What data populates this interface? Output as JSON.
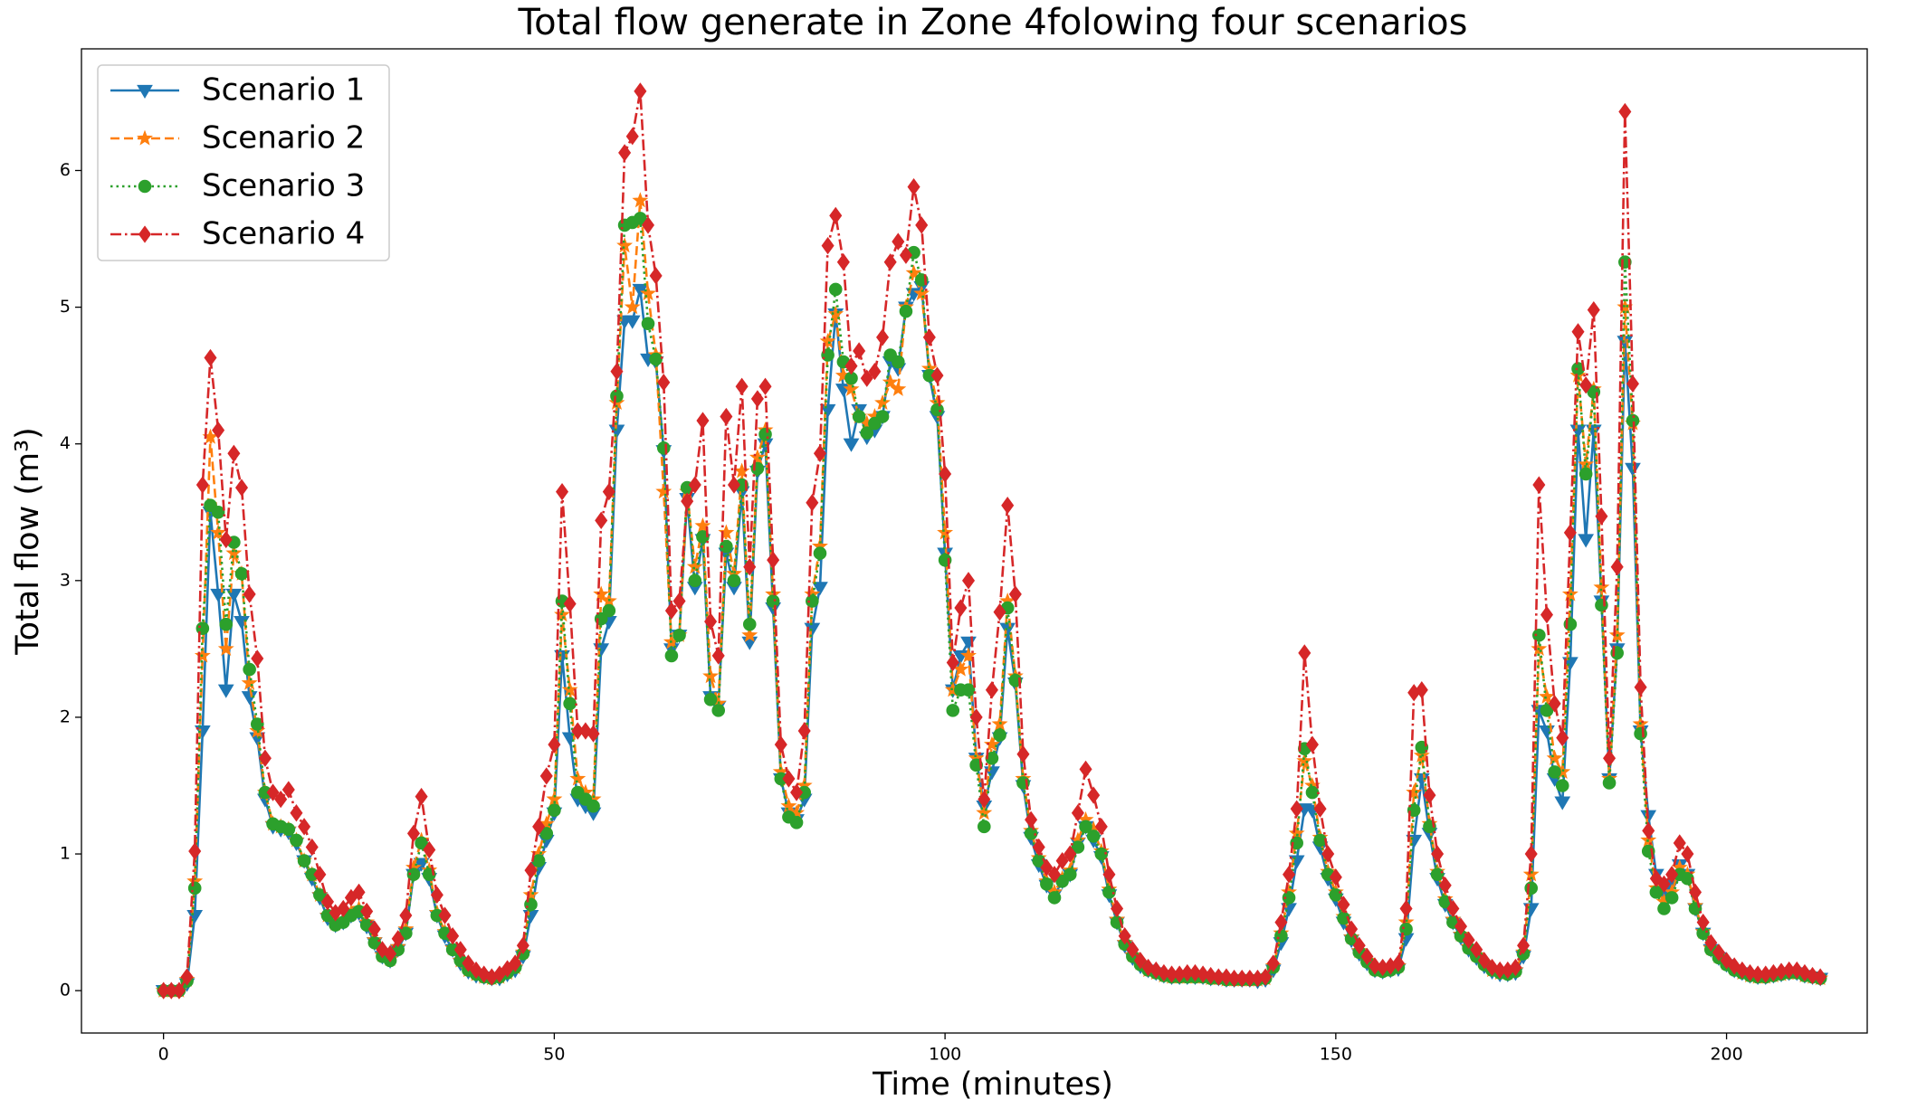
{
  "chart_data": {
    "type": "line",
    "title": "Total flow generate in Zone 4folowing four scenarios",
    "xlabel": "Time (minutes)",
    "ylabel": "Total flow (m³)",
    "legend": "upper left",
    "grid": false,
    "xlim": [
      -10.5,
      218
    ],
    "ylim": [
      -0.31,
      6.89
    ],
    "xticks": [
      0,
      50,
      100,
      150,
      200
    ],
    "yticks": [
      0,
      1,
      2,
      3,
      4,
      5,
      6
    ],
    "x": [
      0,
      1,
      2,
      3,
      4,
      5,
      6,
      7,
      8,
      9,
      10,
      11,
      12,
      13,
      14,
      15,
      16,
      17,
      18,
      19,
      20,
      21,
      22,
      23,
      24,
      25,
      26,
      27,
      28,
      29,
      30,
      31,
      32,
      33,
      34,
      35,
      36,
      37,
      38,
      39,
      40,
      41,
      42,
      43,
      44,
      45,
      46,
      47,
      48,
      49,
      50,
      51,
      52,
      53,
      54,
      55,
      56,
      57,
      58,
      59,
      60,
      61,
      62,
      63,
      64,
      65,
      66,
      67,
      68,
      69,
      70,
      71,
      72,
      73,
      74,
      75,
      76,
      77,
      78,
      79,
      80,
      81,
      82,
      83,
      84,
      85,
      86,
      87,
      88,
      89,
      90,
      91,
      92,
      93,
      94,
      95,
      96,
      97,
      98,
      99,
      100,
      101,
      102,
      103,
      104,
      105,
      106,
      107,
      108,
      109,
      110,
      111,
      112,
      113,
      114,
      115,
      116,
      117,
      118,
      119,
      120,
      121,
      122,
      123,
      124,
      125,
      126,
      127,
      128,
      129,
      130,
      131,
      132,
      133,
      134,
      135,
      136,
      137,
      138,
      139,
      140,
      141,
      142,
      143,
      144,
      145,
      146,
      147,
      148,
      149,
      150,
      151,
      152,
      153,
      154,
      155,
      156,
      157,
      158,
      159,
      160,
      161,
      162,
      163,
      164,
      165,
      166,
      167,
      168,
      169,
      170,
      171,
      172,
      173,
      174,
      175,
      176,
      177,
      178,
      179,
      180,
      181,
      182,
      183,
      184,
      185,
      186,
      187,
      188,
      189,
      190,
      191,
      192,
      193,
      194,
      195,
      196,
      197,
      198,
      199,
      200,
      201,
      202,
      203,
      204,
      205,
      206,
      207,
      208,
      209,
      210,
      211,
      212
    ],
    "series": [
      {
        "name": "Scenario 1",
        "color": "#1f77b4",
        "linestyle": "solid",
        "marker": "triangle-down",
        "values": [
          0,
          0,
          0,
          0.05,
          0.55,
          1.9,
          3.5,
          2.9,
          2.2,
          2.9,
          2.7,
          2.15,
          1.85,
          1.4,
          1.2,
          1.18,
          1.16,
          1.08,
          0.95,
          0.82,
          0.68,
          0.53,
          0.48,
          0.5,
          0.55,
          0.57,
          0.47,
          0.35,
          0.25,
          0.22,
          0.3,
          0.42,
          0.85,
          0.93,
          0.82,
          0.55,
          0.4,
          0.3,
          0.2,
          0.14,
          0.11,
          0.1,
          0.09,
          0.09,
          0.12,
          0.15,
          0.25,
          0.55,
          0.9,
          1.1,
          1.3,
          2.45,
          1.85,
          1.4,
          1.35,
          1.3,
          2.5,
          2.7,
          4.1,
          4.9,
          4.9,
          5.13,
          4.62,
          4.6,
          3.95,
          2.5,
          2.6,
          3.6,
          2.95,
          3.3,
          2.15,
          2.08,
          3.2,
          2.95,
          3.65,
          2.55,
          3.8,
          4.0,
          2.8,
          1.55,
          1.3,
          1.25,
          1.4,
          2.65,
          2.95,
          4.25,
          4.95,
          4.4,
          4.0,
          4.25,
          4.05,
          4.1,
          4.2,
          4.6,
          4.55,
          5.0,
          5.1,
          5.15,
          4.5,
          4.2,
          3.2,
          2.2,
          2.45,
          2.55,
          1.7,
          1.35,
          1.6,
          1.85,
          2.65,
          2.25,
          1.5,
          1.12,
          0.92,
          0.77,
          0.7,
          0.8,
          0.85,
          1.08,
          1.2,
          1.1,
          0.98,
          0.7,
          0.5,
          0.33,
          0.24,
          0.18,
          0.15,
          0.13,
          0.11,
          0.1,
          0.1,
          0.1,
          0.1,
          0.1,
          0.09,
          0.09,
          0.08,
          0.08,
          0.08,
          0.08,
          0.07,
          0.08,
          0.15,
          0.35,
          0.6,
          0.95,
          1.33,
          1.32,
          1.05,
          0.82,
          0.67,
          0.5,
          0.37,
          0.27,
          0.2,
          0.15,
          0.14,
          0.15,
          0.16,
          0.38,
          1.1,
          1.55,
          1.15,
          0.82,
          0.63,
          0.5,
          0.39,
          0.3,
          0.24,
          0.18,
          0.14,
          0.12,
          0.12,
          0.13,
          0.25,
          0.6,
          2.05,
          1.9,
          1.55,
          1.38,
          2.4,
          4.1,
          3.3,
          4.1,
          2.85,
          1.55,
          2.5,
          4.75,
          3.82,
          1.9,
          1.28,
          0.85,
          0.72,
          0.78,
          0.92,
          0.85,
          0.6,
          0.42,
          0.3,
          0.24,
          0.19,
          0.15,
          0.13,
          0.11,
          0.1,
          0.1,
          0.11,
          0.12,
          0.13,
          0.13,
          0.11,
          0.1,
          0.09
        ]
      },
      {
        "name": "Scenario 2",
        "color": "#ff7f0e",
        "linestyle": "dashed",
        "marker": "star",
        "values": [
          0,
          0,
          0,
          0.08,
          0.8,
          2.45,
          4.05,
          3.35,
          2.5,
          3.2,
          3.05,
          2.25,
          1.9,
          1.45,
          1.22,
          1.2,
          1.18,
          1.1,
          0.95,
          0.85,
          0.7,
          0.55,
          0.49,
          0.52,
          0.57,
          0.6,
          0.5,
          0.37,
          0.26,
          0.23,
          0.32,
          0.45,
          0.9,
          1.1,
          0.88,
          0.57,
          0.43,
          0.31,
          0.22,
          0.15,
          0.12,
          0.1,
          0.09,
          0.1,
          0.13,
          0.17,
          0.28,
          0.7,
          1.0,
          1.22,
          1.4,
          2.75,
          2.2,
          1.55,
          1.45,
          1.4,
          2.9,
          2.85,
          4.3,
          5.45,
          5.0,
          5.78,
          5.1,
          4.65,
          3.65,
          2.55,
          2.6,
          3.65,
          3.1,
          3.4,
          2.3,
          2.1,
          3.35,
          3.05,
          3.8,
          2.6,
          3.9,
          4.1,
          2.9,
          1.6,
          1.35,
          1.3,
          1.5,
          2.9,
          3.25,
          4.75,
          4.95,
          4.5,
          4.4,
          4.2,
          4.15,
          4.2,
          4.3,
          4.45,
          4.4,
          5.0,
          5.25,
          5.1,
          4.55,
          4.3,
          3.35,
          2.2,
          2.35,
          2.45,
          1.7,
          1.3,
          1.8,
          1.95,
          2.85,
          2.3,
          1.55,
          1.17,
          0.97,
          0.8,
          0.72,
          0.82,
          0.88,
          1.1,
          1.25,
          1.18,
          1.02,
          0.74,
          0.52,
          0.35,
          0.26,
          0.2,
          0.15,
          0.13,
          0.11,
          0.1,
          0.1,
          0.1,
          0.1,
          0.1,
          0.09,
          0.09,
          0.08,
          0.08,
          0.08,
          0.08,
          0.08,
          0.09,
          0.18,
          0.42,
          0.72,
          1.15,
          1.68,
          1.5,
          1.12,
          0.87,
          0.72,
          0.54,
          0.39,
          0.29,
          0.22,
          0.16,
          0.15,
          0.16,
          0.18,
          0.5,
          1.45,
          1.72,
          1.22,
          0.87,
          0.67,
          0.52,
          0.41,
          0.32,
          0.26,
          0.2,
          0.15,
          0.13,
          0.13,
          0.15,
          0.28,
          0.85,
          2.5,
          2.15,
          1.7,
          1.6,
          2.9,
          4.5,
          3.85,
          4.4,
          2.95,
          1.55,
          2.6,
          5.0,
          4.15,
          1.95,
          1.1,
          0.75,
          0.65,
          0.72,
          0.9,
          0.85,
          0.62,
          0.43,
          0.31,
          0.25,
          0.2,
          0.16,
          0.13,
          0.11,
          0.1,
          0.1,
          0.11,
          0.12,
          0.13,
          0.13,
          0.11,
          0.1,
          0.09
        ]
      },
      {
        "name": "Scenario 3",
        "color": "#2ca02c",
        "linestyle": "dotted",
        "marker": "circle",
        "values": [
          0,
          0,
          0,
          0.07,
          0.75,
          2.65,
          3.55,
          3.5,
          2.68,
          3.28,
          3.05,
          2.35,
          1.95,
          1.45,
          1.22,
          1.2,
          1.18,
          1.1,
          0.95,
          0.85,
          0.7,
          0.55,
          0.48,
          0.5,
          0.55,
          0.58,
          0.48,
          0.35,
          0.25,
          0.22,
          0.3,
          0.42,
          0.85,
          1.08,
          0.85,
          0.55,
          0.42,
          0.3,
          0.22,
          0.15,
          0.12,
          0.1,
          0.09,
          0.1,
          0.13,
          0.17,
          0.27,
          0.63,
          0.95,
          1.15,
          1.32,
          2.85,
          2.1,
          1.45,
          1.4,
          1.35,
          2.72,
          2.78,
          4.35,
          5.6,
          5.62,
          5.65,
          4.88,
          4.62,
          3.97,
          2.45,
          2.6,
          3.68,
          3.0,
          3.32,
          2.13,
          2.05,
          3.25,
          3.0,
          3.7,
          2.68,
          3.82,
          4.07,
          2.85,
          1.55,
          1.27,
          1.23,
          1.45,
          2.85,
          3.2,
          4.65,
          5.13,
          4.6,
          4.48,
          4.2,
          4.08,
          4.15,
          4.2,
          4.65,
          4.6,
          4.97,
          5.4,
          5.2,
          4.5,
          4.25,
          3.15,
          2.05,
          2.2,
          2.2,
          1.65,
          1.2,
          1.7,
          1.87,
          2.8,
          2.27,
          1.52,
          1.15,
          0.95,
          0.78,
          0.68,
          0.8,
          0.85,
          1.05,
          1.2,
          1.13,
          1.0,
          0.72,
          0.5,
          0.34,
          0.25,
          0.19,
          0.15,
          0.13,
          0.11,
          0.1,
          0.1,
          0.1,
          0.1,
          0.1,
          0.09,
          0.09,
          0.08,
          0.08,
          0.08,
          0.08,
          0.08,
          0.09,
          0.17,
          0.4,
          0.68,
          1.08,
          1.77,
          1.45,
          1.1,
          0.85,
          0.7,
          0.53,
          0.38,
          0.28,
          0.21,
          0.15,
          0.14,
          0.15,
          0.17,
          0.45,
          1.32,
          1.78,
          1.2,
          0.85,
          0.65,
          0.5,
          0.4,
          0.31,
          0.25,
          0.19,
          0.15,
          0.13,
          0.12,
          0.14,
          0.27,
          0.75,
          2.6,
          2.05,
          1.6,
          1.5,
          2.68,
          4.55,
          3.78,
          4.38,
          2.82,
          1.52,
          2.47,
          5.33,
          4.17,
          1.88,
          1.02,
          0.72,
          0.6,
          0.68,
          0.85,
          0.82,
          0.6,
          0.42,
          0.3,
          0.24,
          0.19,
          0.15,
          0.13,
          0.11,
          0.1,
          0.1,
          0.11,
          0.12,
          0.13,
          0.13,
          0.11,
          0.1,
          0.09
        ]
      },
      {
        "name": "Scenario 4",
        "color": "#d62728",
        "linestyle": "dashdot",
        "marker": "diamond",
        "values": [
          0,
          0,
          0,
          0.1,
          1.02,
          3.7,
          4.63,
          4.1,
          3.3,
          3.93,
          3.68,
          2.9,
          2.43,
          1.7,
          1.45,
          1.4,
          1.47,
          1.3,
          1.2,
          1.05,
          0.85,
          0.65,
          0.57,
          0.6,
          0.68,
          0.72,
          0.58,
          0.45,
          0.3,
          0.27,
          0.38,
          0.55,
          1.15,
          1.42,
          1.03,
          0.7,
          0.55,
          0.4,
          0.3,
          0.2,
          0.15,
          0.12,
          0.1,
          0.12,
          0.16,
          0.2,
          0.33,
          0.88,
          1.2,
          1.57,
          1.8,
          3.65,
          2.83,
          1.9,
          1.9,
          1.88,
          3.44,
          3.65,
          4.53,
          6.13,
          6.25,
          6.58,
          5.6,
          5.23,
          4.45,
          2.78,
          2.85,
          3.58,
          3.7,
          4.17,
          2.7,
          2.45,
          4.2,
          3.7,
          4.42,
          3.1,
          4.33,
          4.42,
          3.15,
          1.8,
          1.55,
          1.45,
          1.9,
          3.57,
          3.93,
          5.45,
          5.67,
          5.33,
          4.57,
          4.68,
          4.48,
          4.53,
          4.78,
          5.33,
          5.48,
          5.38,
          5.88,
          5.6,
          4.78,
          4.5,
          3.78,
          2.4,
          2.8,
          3.0,
          2.0,
          1.4,
          2.2,
          2.77,
          3.55,
          2.9,
          1.73,
          1.25,
          1.05,
          0.9,
          0.85,
          0.95,
          1.0,
          1.3,
          1.62,
          1.43,
          1.2,
          0.85,
          0.6,
          0.4,
          0.3,
          0.22,
          0.17,
          0.15,
          0.13,
          0.12,
          0.12,
          0.13,
          0.13,
          0.12,
          0.11,
          0.1,
          0.1,
          0.09,
          0.09,
          0.09,
          0.09,
          0.1,
          0.2,
          0.5,
          0.85,
          1.33,
          2.47,
          1.8,
          1.33,
          1.0,
          0.83,
          0.63,
          0.45,
          0.33,
          0.25,
          0.18,
          0.17,
          0.18,
          0.2,
          0.6,
          2.18,
          2.2,
          1.43,
          1.0,
          0.77,
          0.6,
          0.47,
          0.37,
          0.3,
          0.22,
          0.17,
          0.15,
          0.15,
          0.17,
          0.33,
          1.0,
          3.7,
          2.75,
          2.1,
          1.85,
          3.35,
          4.82,
          4.43,
          4.98,
          3.47,
          1.7,
          3.1,
          6.43,
          4.44,
          2.22,
          1.17,
          0.82,
          0.78,
          0.85,
          1.08,
          1.0,
          0.72,
          0.5,
          0.35,
          0.28,
          0.22,
          0.18,
          0.15,
          0.13,
          0.12,
          0.12,
          0.13,
          0.14,
          0.15,
          0.15,
          0.13,
          0.11,
          0.1
        ]
      }
    ]
  }
}
